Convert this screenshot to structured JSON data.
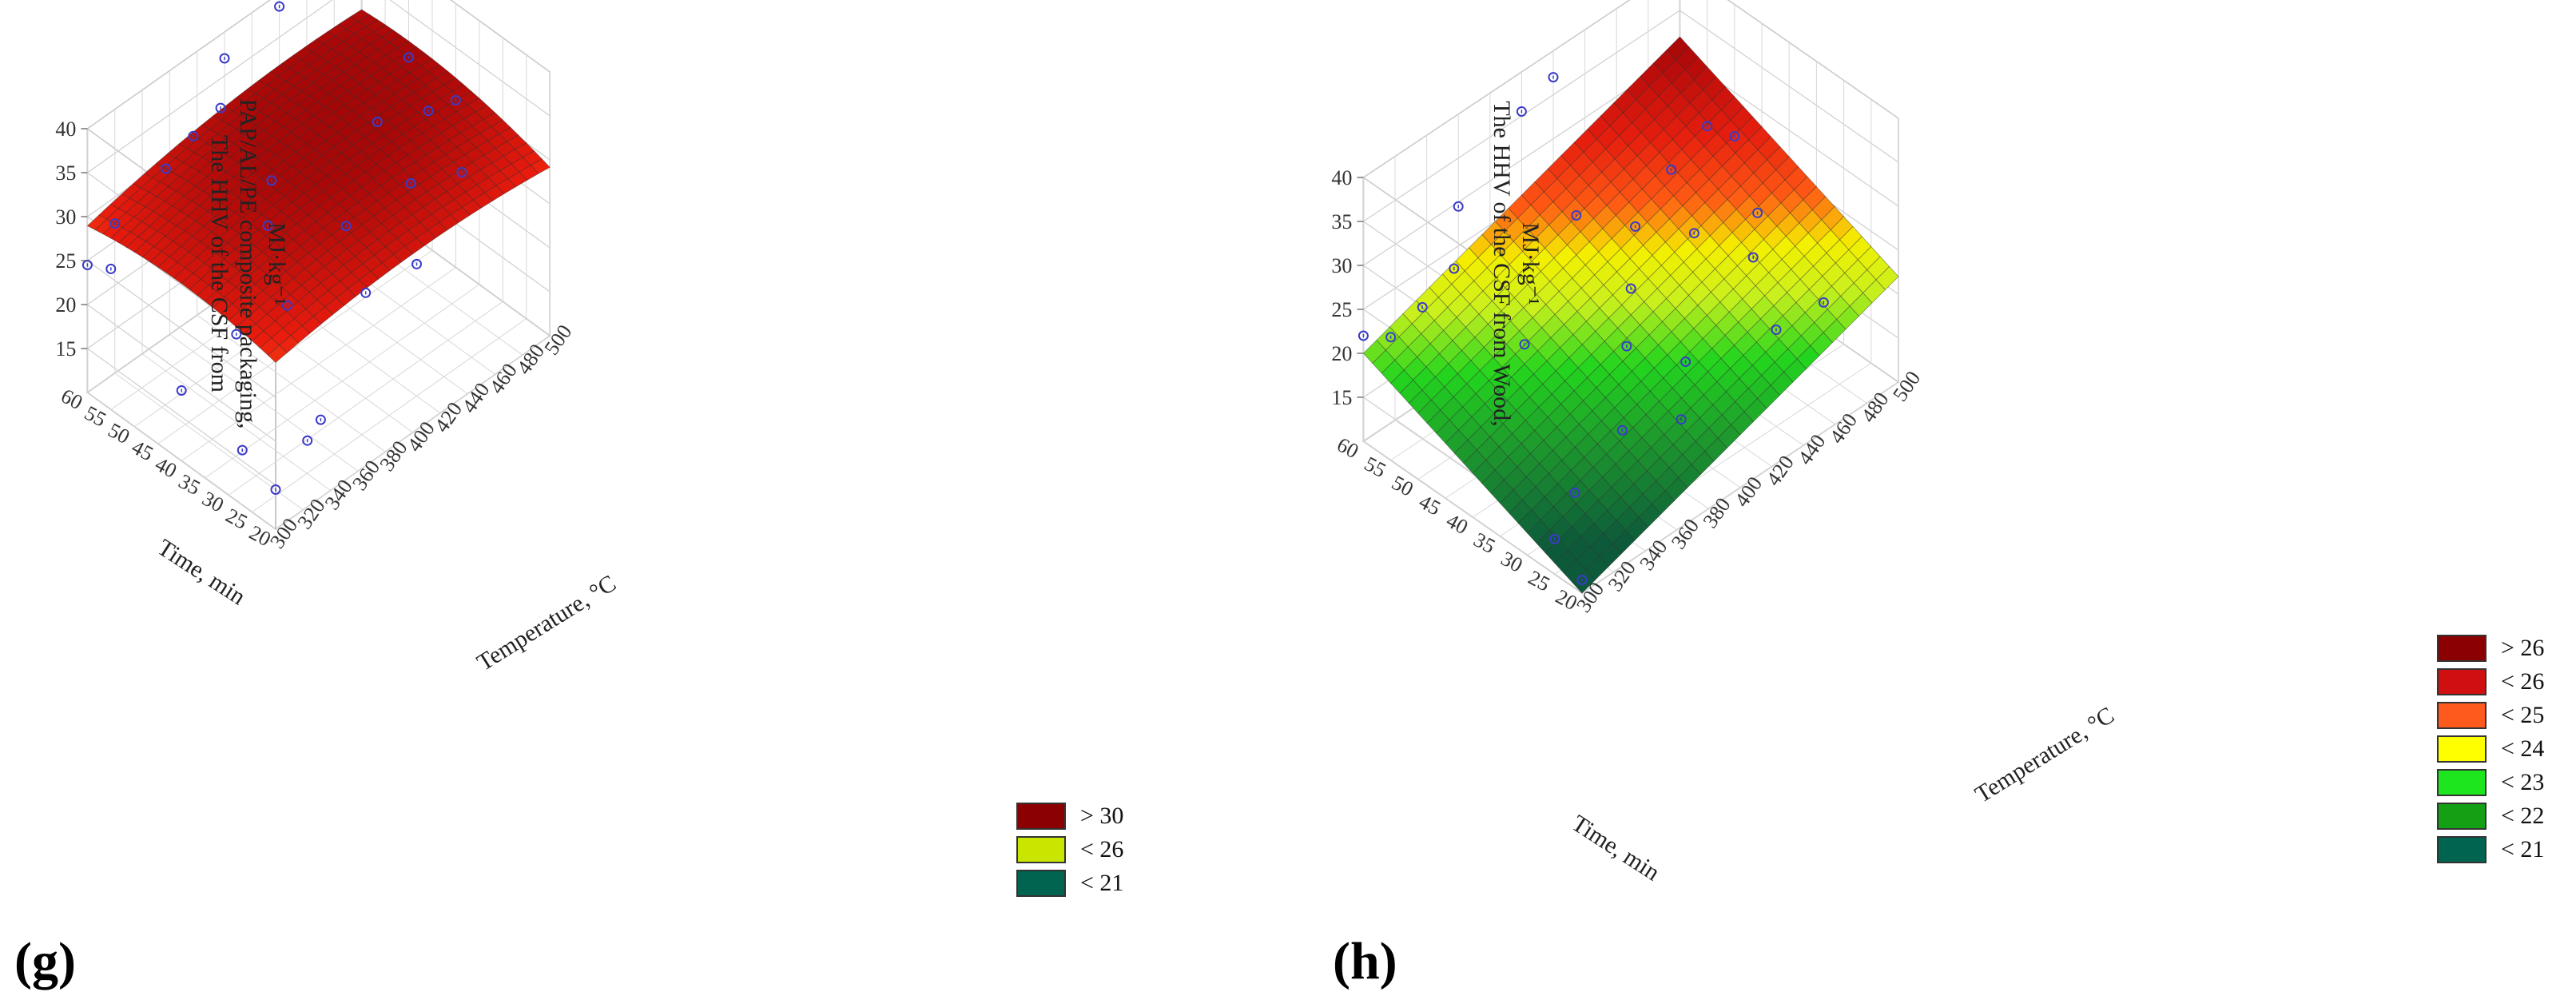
{
  "panels": [
    {
      "label": "(g)"
    },
    {
      "label": "(h)"
    }
  ],
  "chart_data": [
    {
      "type": "surface3d",
      "panel": "(g)",
      "zlabel": [
        "The HHV of the CSF from",
        "PAP/AL/PE composite packaging,",
        "MJ·kg⁻¹"
      ],
      "xlabel": "Temperature, °C",
      "ylabel": "Time, min",
      "xlim": [
        300,
        500
      ],
      "ylim": [
        20,
        60
      ],
      "zlim": [
        10,
        40
      ],
      "xticks": [
        "300",
        "320",
        "340",
        "360",
        "380",
        "400",
        "420",
        "440",
        "460",
        "480",
        "500"
      ],
      "yticks": [
        "20",
        "25",
        "30",
        "35",
        "40",
        "45",
        "50",
        "55",
        "60"
      ],
      "zticks": [
        "15",
        "20",
        "25",
        "30",
        "35",
        "40"
      ],
      "surface_model": {
        "form": "quadratic",
        "intercept": 8.1,
        "x_coef": 0.095,
        "y_coef": 0.15,
        "xx_coef": -0.000125,
        "xy_coef": 0.0003,
        "yy_coef": -0.003
      },
      "colormap": [
        {
          "z": 14,
          "color": "#0d5a3a"
        },
        {
          "z": 19,
          "color": "#19b419"
        },
        {
          "z": 23,
          "color": "#8cf01e"
        },
        {
          "z": 25.5,
          "color": "#e6f000"
        },
        {
          "z": 27.5,
          "color": "#ff7a14"
        },
        {
          "z": 29.5,
          "color": "#ea1c0e"
        },
        {
          "z": 32,
          "color": "#a80808"
        },
        {
          "z": 36,
          "color": "#700000"
        }
      ],
      "points": [
        [
          300,
          60,
          24.5
        ],
        [
          300,
          55,
          26
        ],
        [
          320,
          60,
          27
        ],
        [
          340,
          55,
          33
        ],
        [
          360,
          55,
          34.5
        ],
        [
          380,
          55,
          35.5
        ],
        [
          400,
          60,
          37
        ],
        [
          440,
          60,
          38.5
        ],
        [
          300,
          20,
          14.5
        ],
        [
          330,
          22,
          16
        ],
        [
          300,
          40,
          18
        ],
        [
          310,
          30,
          14
        ],
        [
          350,
          25,
          15
        ],
        [
          400,
          30,
          22
        ],
        [
          420,
          40,
          23.5
        ],
        [
          400,
          50,
          27
        ],
        [
          380,
          45,
          26
        ],
        [
          450,
          35,
          27
        ],
        [
          460,
          45,
          29
        ],
        [
          480,
          40,
          30
        ],
        [
          500,
          50,
          30
        ],
        [
          500,
          40,
          29
        ],
        [
          470,
          30,
          28
        ],
        [
          420,
          25,
          25
        ],
        [
          360,
          35,
          23
        ],
        [
          340,
          40,
          20
        ]
      ],
      "legend": [
        {
          "label": "> 30",
          "color": "#8b0000"
        },
        {
          "label": "< 26",
          "color": "#c8e600"
        },
        {
          "label": "< 21",
          "color": "#006450"
        }
      ]
    },
    {
      "type": "surface3d",
      "panel": "(h)",
      "zlabel": [
        "The HHV of the CSF from Wood,",
        "MJ·kg⁻¹"
      ],
      "xlabel": "Temperature, °C",
      "ylabel": "Time, min",
      "xlim": [
        300,
        500
      ],
      "ylim": [
        20,
        60
      ],
      "zlim": [
        10,
        40
      ],
      "xticks": [
        "300",
        "320",
        "340",
        "360",
        "380",
        "400",
        "420",
        "440",
        "460",
        "480",
        "500"
      ],
      "yticks": [
        "20",
        "25",
        "30",
        "35",
        "40",
        "45",
        "50",
        "55",
        "60"
      ],
      "zticks": [
        "15",
        "20",
        "25",
        "30",
        "35",
        "40"
      ],
      "surface_model": {
        "form": "linear",
        "intercept": -13.0,
        "x_coef": 0.06,
        "y_coef": 0.25
      },
      "colormap": [
        {
          "z": 12,
          "color": "#0d5a3a"
        },
        {
          "z": 16,
          "color": "#1e9a2d"
        },
        {
          "z": 19,
          "color": "#23d51e"
        },
        {
          "z": 21.5,
          "color": "#c8f01e"
        },
        {
          "z": 23.5,
          "color": "#f5f000"
        },
        {
          "z": 25.5,
          "color": "#ff5a14"
        },
        {
          "z": 28,
          "color": "#e61e0e"
        },
        {
          "z": 31,
          "color": "#b40a0a"
        },
        {
          "z": 35,
          "color": "#7a0000"
        }
      ],
      "points": [
        [
          300,
          60,
          22
        ],
        [
          300,
          55,
          24
        ],
        [
          320,
          55,
          25
        ],
        [
          340,
          55,
          27
        ],
        [
          360,
          60,
          29.5
        ],
        [
          400,
          60,
          35.5
        ],
        [
          420,
          60,
          37
        ],
        [
          300,
          20,
          11.5
        ],
        [
          300,
          25,
          14
        ],
        [
          330,
          30,
          13.5
        ],
        [
          360,
          30,
          17
        ],
        [
          380,
          25,
          18
        ],
        [
          400,
          30,
          20
        ],
        [
          440,
          25,
          21
        ],
        [
          460,
          35,
          22.5
        ],
        [
          480,
          40,
          23
        ],
        [
          500,
          50,
          25
        ],
        [
          500,
          55,
          24
        ],
        [
          460,
          50,
          26
        ],
        [
          420,
          45,
          26.5
        ],
        [
          400,
          40,
          24
        ],
        [
          380,
          35,
          22
        ],
        [
          350,
          45,
          21.5
        ],
        [
          440,
          40,
          25.5
        ],
        [
          400,
          50,
          28
        ],
        [
          470,
          25,
          20.5
        ]
      ],
      "legend": [
        {
          "label": "> 26",
          "color": "#8b0000"
        },
        {
          "label": "< 26",
          "color": "#d01010"
        },
        {
          "label": "< 25",
          "color": "#ff5a1e"
        },
        {
          "label": "< 24",
          "color": "#ffff00"
        },
        {
          "label": "< 23",
          "color": "#1ee61e"
        },
        {
          "label": "< 22",
          "color": "#14a014"
        },
        {
          "label": "< 21",
          "color": "#006450"
        }
      ]
    }
  ]
}
